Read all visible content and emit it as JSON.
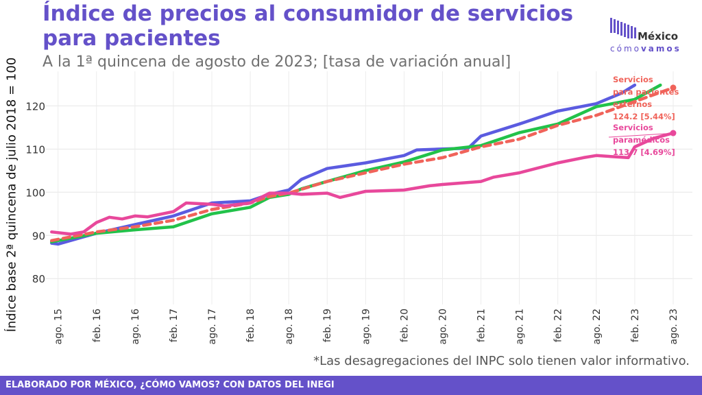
{
  "header": {
    "title": "Índice de precios al consumidor de servicios\n para pacientes",
    "subtitle": "A la 1ª quincena de agosto de 2023; [tasa de variación anual]"
  },
  "logo": {
    "line1": "México",
    "line2a": "cómo",
    "line2b": "vamos",
    "accent_color": "#6451c9"
  },
  "footnote": "*Las desagregaciones del INPC solo tienen valor informativo.",
  "footer": {
    "text": "ELABORADO POR MÉXICO, ¿CÓMO VAMOS? CON DATOS DEL INEGI"
  },
  "chart_data": {
    "type": "line",
    "title": "Índice de precios al consumidor de servicios para pacientes",
    "ylabel": "Índice base 2ª quincena de julio 2018 = 100",
    "xlabel": "",
    "ylim": [
      74,
      128
    ],
    "yticks": [
      80,
      90,
      100,
      110,
      120
    ],
    "xlim": [
      "2015-06",
      "2023-11"
    ],
    "xticks": [
      "ago. 15",
      "feb. 16",
      "ago. 16",
      "feb. 17",
      "ago. 17",
      "feb. 18",
      "ago. 18",
      "feb. 19",
      "ago. 19",
      "feb. 20",
      "ago. 20",
      "feb. 21",
      "ago. 21",
      "feb. 22",
      "ago. 22",
      "feb. 23",
      "ago. 23"
    ],
    "grid": true,
    "series": [
      {
        "key": "blue",
        "color": "#5b5be0",
        "dash": false,
        "points": [
          [
            "2015-07",
            88.2
          ],
          [
            "2015-08",
            88.0
          ],
          [
            "2016-02",
            90.5
          ],
          [
            "2016-08",
            92.5
          ],
          [
            "2017-02",
            94.5
          ],
          [
            "2017-08",
            97.5
          ],
          [
            "2018-02",
            98.0
          ],
          [
            "2018-05",
            99.5
          ],
          [
            "2018-08",
            100.5
          ],
          [
            "2018-10",
            103.0
          ],
          [
            "2019-02",
            105.5
          ],
          [
            "2019-08",
            106.8
          ],
          [
            "2020-02",
            108.5
          ],
          [
            "2020-04",
            109.8
          ],
          [
            "2020-08",
            110.0
          ],
          [
            "2020-12",
            110.2
          ],
          [
            "2021-02",
            113.0
          ],
          [
            "2021-08",
            115.8
          ],
          [
            "2022-02",
            118.8
          ],
          [
            "2022-08",
            120.5
          ],
          [
            "2022-12",
            123.0
          ],
          [
            "2023-02",
            124.8
          ]
        ]
      },
      {
        "key": "green",
        "color": "#22c24a",
        "dash": false,
        "points": [
          [
            "2015-07",
            88.5
          ],
          [
            "2016-02",
            90.5
          ],
          [
            "2016-08",
            91.3
          ],
          [
            "2017-02",
            92.0
          ],
          [
            "2017-08",
            95.0
          ],
          [
            "2018-02",
            96.5
          ],
          [
            "2018-05",
            98.8
          ],
          [
            "2018-08",
            99.5
          ],
          [
            "2018-10",
            100.8
          ],
          [
            "2019-02",
            102.5
          ],
          [
            "2019-08",
            105.0
          ],
          [
            "2020-02",
            107.0
          ],
          [
            "2020-08",
            109.8
          ],
          [
            "2021-02",
            110.8
          ],
          [
            "2021-08",
            113.8
          ],
          [
            "2022-02",
            115.8
          ],
          [
            "2022-08",
            119.8
          ],
          [
            "2023-02",
            121.5
          ],
          [
            "2023-06",
            124.8
          ]
        ]
      },
      {
        "name": "Servicios para pacientes externos",
        "key": "red",
        "color": "#f0635a",
        "dash": true,
        "label": "124.2 [5.44%]",
        "points": [
          [
            "2015-07",
            88.8
          ],
          [
            "2016-02",
            90.8
          ],
          [
            "2016-08",
            92.0
          ],
          [
            "2017-02",
            93.5
          ],
          [
            "2017-08",
            96.0
          ],
          [
            "2018-02",
            97.5
          ],
          [
            "2018-05",
            99.0
          ],
          [
            "2018-08",
            99.8
          ],
          [
            "2019-02",
            102.5
          ],
          [
            "2019-08",
            104.5
          ],
          [
            "2020-02",
            106.5
          ],
          [
            "2020-08",
            108.0
          ],
          [
            "2021-02",
            110.5
          ],
          [
            "2021-08",
            112.3
          ],
          [
            "2022-02",
            115.5
          ],
          [
            "2022-08",
            117.8
          ],
          [
            "2023-02",
            121.0
          ],
          [
            "2023-08",
            124.2
          ]
        ]
      },
      {
        "name": "Servicios paramédicos",
        "key": "pink",
        "color": "#e8489b",
        "dash": false,
        "label": "113.7 [4.69%]",
        "points": [
          [
            "2015-07",
            90.8
          ],
          [
            "2015-10",
            90.3
          ],
          [
            "2015-12",
            90.8
          ],
          [
            "2016-02",
            93.0
          ],
          [
            "2016-04",
            94.2
          ],
          [
            "2016-06",
            93.8
          ],
          [
            "2016-08",
            94.5
          ],
          [
            "2016-10",
            94.3
          ],
          [
            "2017-02",
            95.5
          ],
          [
            "2017-04",
            97.5
          ],
          [
            "2017-08",
            97.2
          ],
          [
            "2017-10",
            96.8
          ],
          [
            "2018-02",
            97.5
          ],
          [
            "2018-05",
            99.8
          ],
          [
            "2018-08",
            99.8
          ],
          [
            "2018-10",
            99.5
          ],
          [
            "2019-02",
            99.8
          ],
          [
            "2019-04",
            98.8
          ],
          [
            "2019-08",
            100.2
          ],
          [
            "2020-02",
            100.5
          ],
          [
            "2020-06",
            101.5
          ],
          [
            "2020-08",
            101.8
          ],
          [
            "2021-02",
            102.5
          ],
          [
            "2021-04",
            103.5
          ],
          [
            "2021-08",
            104.5
          ],
          [
            "2022-02",
            106.8
          ],
          [
            "2022-06",
            108.0
          ],
          [
            "2022-08",
            108.5
          ],
          [
            "2023-01",
            108.0
          ],
          [
            "2023-02",
            110.5
          ],
          [
            "2023-05",
            112.5
          ],
          [
            "2023-08",
            113.7
          ]
        ]
      }
    ]
  }
}
